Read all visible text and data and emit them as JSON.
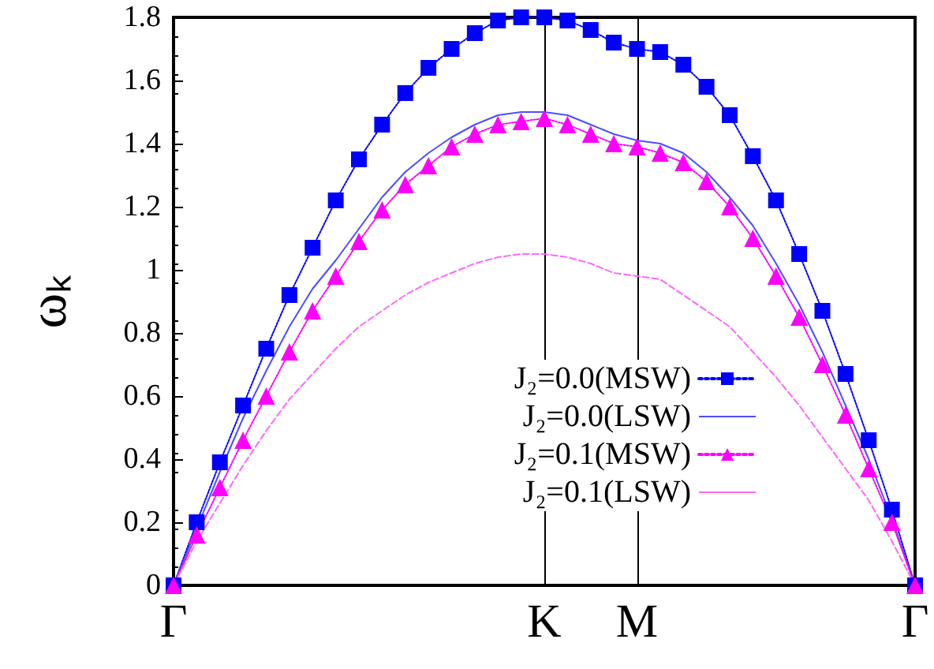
{
  "chart_data": {
    "type": "line",
    "ylabel": "ωₖ",
    "categories": [
      "Γ",
      null,
      null,
      null,
      null,
      null,
      null,
      null,
      null,
      null,
      null,
      null,
      null,
      null,
      null,
      null,
      "K",
      null,
      null,
      null,
      "M",
      null,
      null,
      null,
      null,
      null,
      null,
      null,
      null,
      null,
      null,
      null,
      "Γ"
    ],
    "ylim": [
      0,
      1.8
    ],
    "yticks": [
      0,
      0.2,
      0.4,
      0.6,
      0.8,
      1,
      1.2,
      1.4,
      1.6,
      1.8
    ],
    "series": [
      {
        "name": "J₂=0.0(MSW)",
        "color": "#0000ff",
        "marker": "square",
        "line_style": "dotted",
        "values": [
          0,
          0.2,
          0.39,
          0.57,
          0.75,
          0.92,
          1.07,
          1.22,
          1.35,
          1.46,
          1.56,
          1.64,
          1.7,
          1.75,
          1.79,
          1.8,
          1.8,
          1.79,
          1.76,
          1.72,
          1.7,
          1.69,
          1.65,
          1.58,
          1.49,
          1.36,
          1.22,
          1.05,
          0.87,
          0.67,
          0.46,
          0.24,
          0
        ]
      },
      {
        "name": "J₂=0.0(LSW)",
        "color": "#4d4dff",
        "marker": "none",
        "line_style": "solid",
        "values": [
          0,
          0.18,
          0.36,
          0.53,
          0.68,
          0.82,
          0.94,
          1.03,
          1.13,
          1.23,
          1.31,
          1.37,
          1.42,
          1.46,
          1.49,
          1.5,
          1.5,
          1.49,
          1.46,
          1.43,
          1.41,
          1.4,
          1.37,
          1.31,
          1.23,
          1.14,
          1.02,
          0.89,
          0.74,
          0.57,
          0.4,
          0.21,
          0
        ]
      },
      {
        "name": "J₂=0.1(MSW)",
        "color": "#ff00ff",
        "marker": "triangle",
        "line_style": "dotted",
        "values": [
          0,
          0.16,
          0.31,
          0.46,
          0.6,
          0.74,
          0.87,
          0.98,
          1.09,
          1.19,
          1.27,
          1.33,
          1.39,
          1.43,
          1.46,
          1.47,
          1.48,
          1.46,
          1.43,
          1.4,
          1.39,
          1.37,
          1.34,
          1.28,
          1.2,
          1.1,
          0.98,
          0.85,
          0.7,
          0.54,
          0.37,
          0.2,
          0
        ]
      },
      {
        "name": "J₂=0.1(LSW)",
        "color": "#ff66ff",
        "marker": "none",
        "line_style": "dashed",
        "values": [
          0,
          0.14,
          0.26,
          0.38,
          0.49,
          0.59,
          0.67,
          0.75,
          0.82,
          0.87,
          0.92,
          0.96,
          0.99,
          1.02,
          1.04,
          1.05,
          1.05,
          1.04,
          1.02,
          0.99,
          0.98,
          0.97,
          0.92,
          0.87,
          0.82,
          0.74,
          0.66,
          0.57,
          0.47,
          0.37,
          0.27,
          0.14,
          0
        ]
      }
    ],
    "ref_lines": [
      {
        "axis": "x",
        "value": "K",
        "color": "#000000"
      },
      {
        "axis": "x",
        "value": "M",
        "color": "#000000"
      }
    ],
    "legend": "bottom right",
    "grid": false
  }
}
